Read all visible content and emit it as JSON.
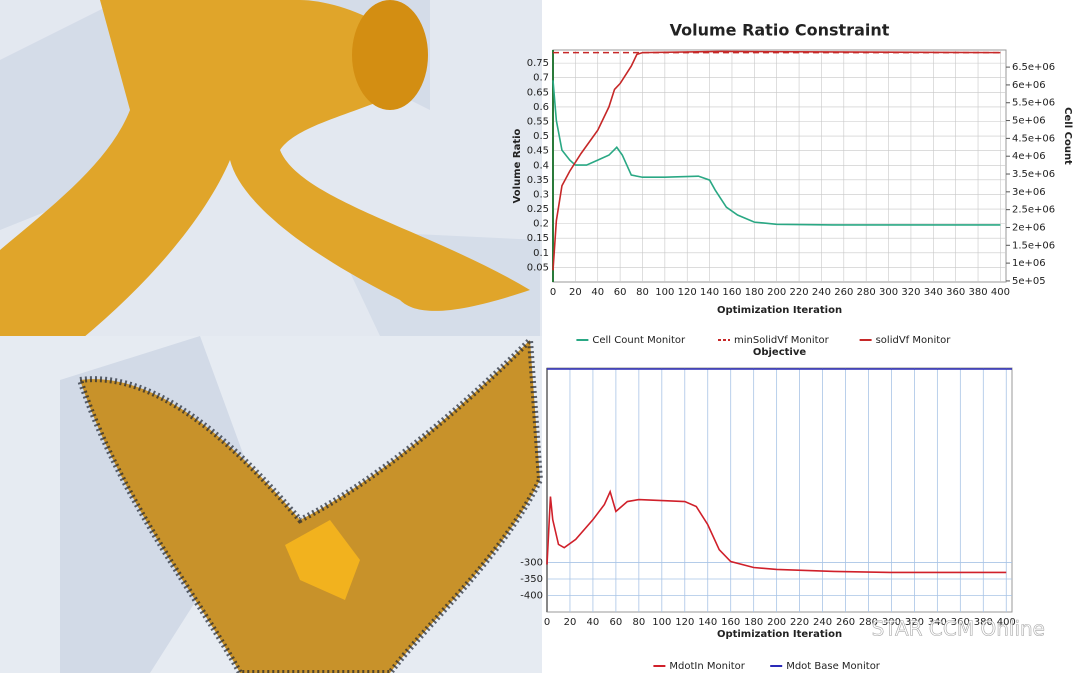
{
  "chart_data": [
    {
      "type": "line",
      "title": "Volume Ratio Constraint",
      "xlabel": "Optimization Iteration",
      "ylabel": "Volume Ratio",
      "y2label": "Cell Count",
      "xlim": [
        0,
        405
      ],
      "xticks": [
        0,
        20,
        40,
        60,
        80,
        100,
        120,
        140,
        160,
        180,
        200,
        220,
        240,
        260,
        280,
        300,
        320,
        340,
        360,
        380,
        400
      ],
      "ylim": [
        0,
        0.795
      ],
      "yticks": [
        0.05,
        0.1,
        0.15,
        0.2,
        0.25,
        0.3,
        0.35,
        0.4,
        0.45,
        0.5,
        0.55,
        0.6,
        0.65,
        0.7,
        0.75
      ],
      "y2lim": [
        470000,
        6980000
      ],
      "y2ticks": [
        {
          "value": 500000,
          "label": "5e+05"
        },
        {
          "value": 1000000,
          "label": "1e+06"
        },
        {
          "value": 1500000,
          "label": "1.5e+06"
        },
        {
          "value": 2000000,
          "label": "2e+06"
        },
        {
          "value": 2500000,
          "label": "2.5e+06"
        },
        {
          "value": 3000000,
          "label": "3e+06"
        },
        {
          "value": 3500000,
          "label": "3.5e+06"
        },
        {
          "value": 4000000,
          "label": "4e+06"
        },
        {
          "value": 4500000,
          "label": "4.5e+06"
        },
        {
          "value": 5000000,
          "label": "5e+06"
        },
        {
          "value": 5500000,
          "label": "5.5e+06"
        },
        {
          "value": 6000000,
          "label": "6e+06"
        },
        {
          "value": 6500000,
          "label": "6.5e+06"
        }
      ],
      "grid": true,
      "series": [
        {
          "name": "Cell Count Monitor",
          "color": "#2aa884",
          "axis": "y2",
          "x": [
            0,
            3,
            8,
            15,
            20,
            30,
            40,
            50,
            57,
            62,
            70,
            80,
            100,
            130,
            140,
            145,
            155,
            165,
            180,
            200,
            250,
            300,
            350,
            400
          ],
          "values": [
            6130000,
            5000000,
            4170000,
            3890000,
            3750000,
            3750000,
            3890000,
            4030000,
            4250000,
            4030000,
            3470000,
            3410000,
            3410000,
            3440000,
            3330000,
            3050000,
            2570000,
            2350000,
            2150000,
            2090000,
            2070000,
            2070000,
            2070000,
            2070000
          ]
        },
        {
          "name": "minSolidVf Monitor",
          "color": "#c62828",
          "dashed": true,
          "x": [
            0,
            400
          ],
          "values": [
            0.786,
            0.786
          ]
        },
        {
          "name": "solidVf Monitor",
          "color": "#c62828",
          "x": [
            0,
            3,
            8,
            15,
            25,
            40,
            50,
            55,
            60,
            70,
            75,
            80,
            150,
            400
          ],
          "values": [
            0.04,
            0.21,
            0.33,
            0.38,
            0.44,
            0.52,
            0.6,
            0.66,
            0.68,
            0.74,
            0.78,
            0.786,
            0.79,
            0.786
          ]
        }
      ]
    },
    {
      "type": "line",
      "title": "Objective",
      "xlabel": "Optimization Iteration",
      "xlim": [
        0,
        405
      ],
      "xticks": [
        0,
        20,
        40,
        60,
        80,
        100,
        120,
        140,
        160,
        180,
        200,
        220,
        240,
        260,
        280,
        300,
        320,
        340,
        360,
        380,
        400
      ],
      "ylim": [
        -450,
        290
      ],
      "yticks": [
        -300,
        -350,
        -400
      ],
      "grid": true,
      "series": [
        {
          "name": "MdotIn Monitor",
          "color": "#d0202a",
          "x": [
            0,
            3,
            5,
            10,
            15,
            25,
            40,
            50,
            55,
            60,
            70,
            80,
            120,
            130,
            140,
            150,
            160,
            180,
            200,
            250,
            300,
            400
          ],
          "values": [
            -306,
            -100,
            -170,
            -245,
            -255,
            -230,
            -170,
            -124,
            -85,
            -145,
            -115,
            -109,
            -115,
            -130,
            -185,
            -261,
            -297,
            -315,
            -321,
            -327,
            -330,
            -330
          ]
        },
        {
          "name": "Mdot Base Monitor",
          "color": "#2a2ab8",
          "x": [
            0,
            405
          ],
          "values": [
            287,
            287
          ]
        }
      ],
      "watermark": "STAR CCM Online"
    }
  ]
}
